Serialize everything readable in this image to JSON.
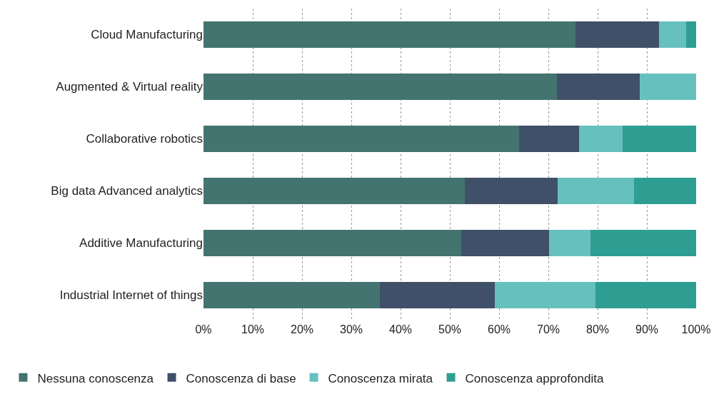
{
  "chart_data": {
    "type": "bar",
    "orientation": "horizontal",
    "stacked": true,
    "categories": [
      "Cloud Manufacturing",
      "Augmented & Virtual reality",
      "Collaborative robotics",
      "Big data Advanced analytics",
      "Additive Manufacturing",
      "Industrial Internet of things"
    ],
    "series": [
      {
        "name": "Nessuna conoscenza",
        "color": "#44746f",
        "values": [
          75.5,
          71.7,
          64.1,
          53.1,
          52.3,
          35.8
        ]
      },
      {
        "name": "Conoscenza di base",
        "color": "#3f5068",
        "values": [
          17,
          16.8,
          12.1,
          18.8,
          17.9,
          23.4
        ]
      },
      {
        "name": "Conoscenza mirata",
        "color": "#66c0be",
        "values": [
          5.5,
          11.5,
          8.8,
          15.5,
          8.4,
          20.3
        ]
      },
      {
        "name": "Conoscenza approfondita",
        "color": "#2e9e92",
        "values": [
          2,
          0,
          15,
          12.6,
          21.4,
          20.5
        ]
      }
    ],
    "xlim": [
      0,
      100
    ],
    "xticks": [
      {
        "value": 0,
        "label": "0%"
      },
      {
        "value": 10,
        "label": "10%"
      },
      {
        "value": 20,
        "label": "20%"
      },
      {
        "value": 30,
        "label": "30%"
      },
      {
        "value": 40,
        "label": "40%"
      },
      {
        "value": 50,
        "label": "50%"
      },
      {
        "value": 60,
        "label": "60%"
      },
      {
        "value": 70,
        "label": "70%"
      },
      {
        "value": 80,
        "label": "80%"
      },
      {
        "value": 90,
        "label": "90%"
      },
      {
        "value": 100,
        "label": "100%"
      }
    ],
    "grid": "x",
    "legend": "bottom"
  }
}
